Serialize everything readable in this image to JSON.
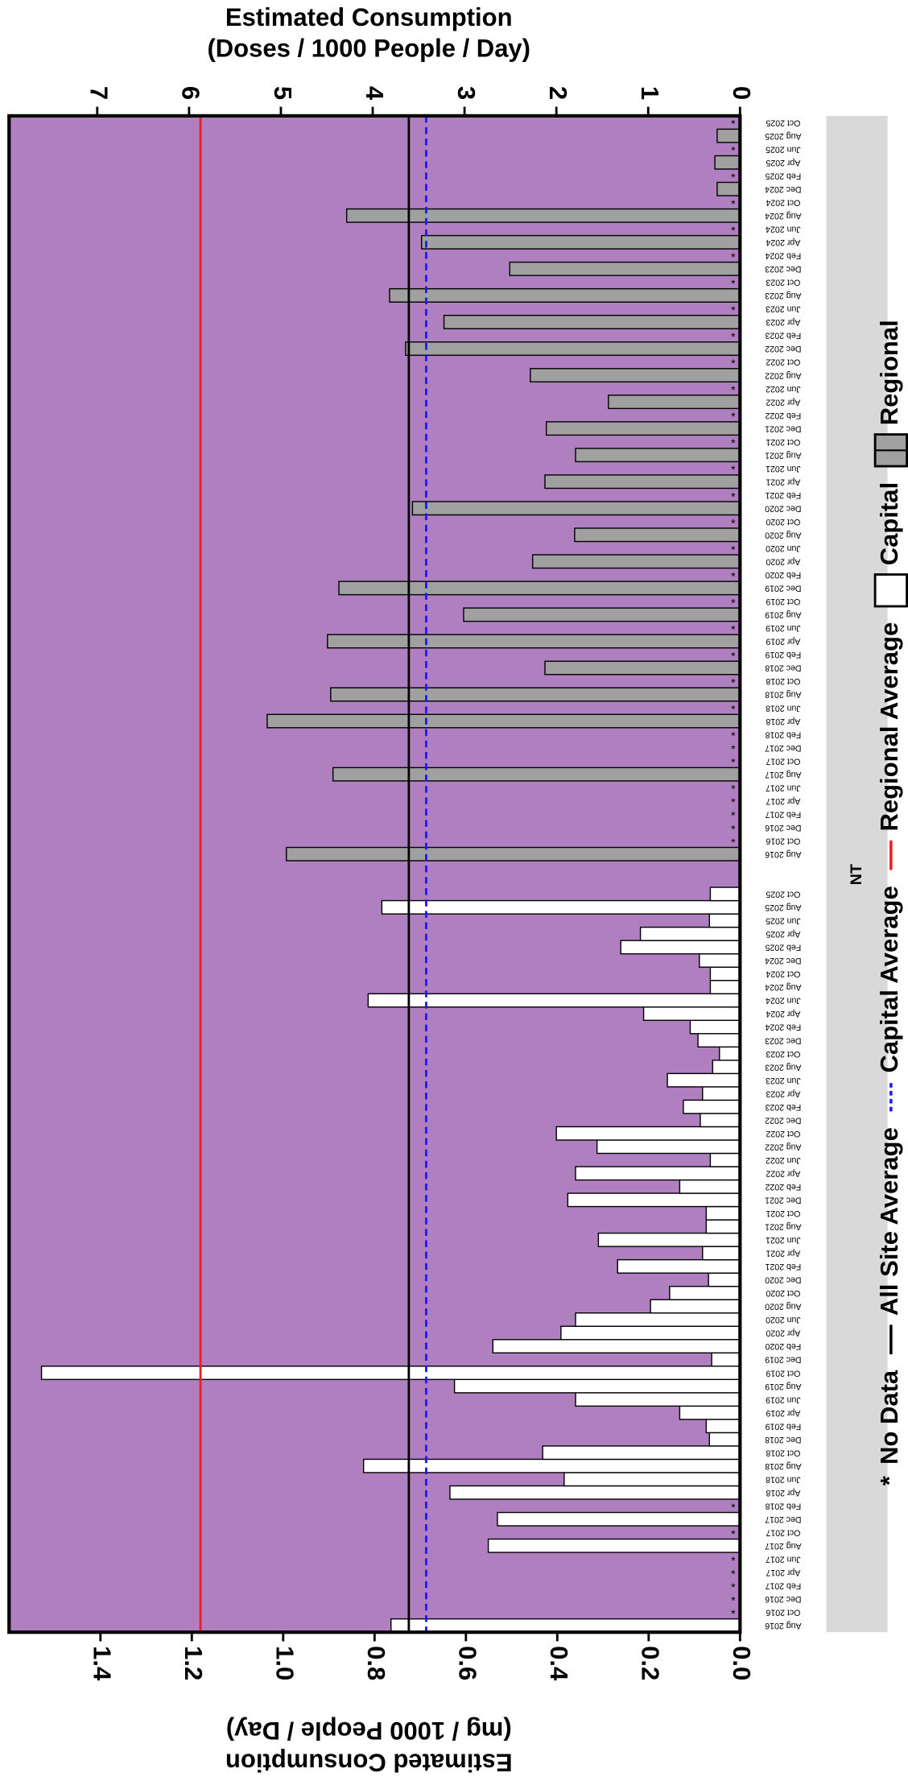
{
  "chart_data": {
    "type": "bar",
    "orientation": "horizontal",
    "facet_label": "NT",
    "ylabel": [
      "Estimated Consumption",
      "(mg / 1000 People / Day)"
    ],
    "y2label": [
      "Estimated Consumption",
      "(Doses / 1000 People / Day)"
    ],
    "ylim": [
      0,
      1.6
    ],
    "yticks": [
      {
        "value": 0,
        "label": "0.0"
      },
      0.2,
      0.4,
      0.6,
      0.8,
      {
        "value": 1,
        "label": "1.0"
      },
      1.2,
      1.4
    ],
    "y2lim": [
      0,
      7.96
    ],
    "y2ticks": [
      0,
      1,
      2,
      3,
      4,
      5,
      6,
      7
    ],
    "plot_background": "#b07fc0",
    "no_data_label": "*",
    "no_data_name": "No Data",
    "categories": [
      "Aug 2016",
      "Oct 2016",
      "Dec 2016",
      "Feb 2017",
      "Apr 2017",
      "Jun 2017",
      "Aug 2017",
      "Oct 2017",
      "Dec 2017",
      "Feb 2018",
      "Apr 2018",
      "Jun 2018",
      "Aug 2018",
      "Oct 2018",
      "Dec 2018",
      "Feb 2019",
      "Apr 2019",
      "Jun 2019",
      "Aug 2019",
      "Oct 2019",
      "Dec 2019",
      "Feb 2020",
      "Apr 2020",
      "Jun 2020",
      "Aug 2020",
      "Oct 2020",
      "Dec 2020",
      "Feb 2021",
      "Apr 2021",
      "Jun 2021",
      "Aug 2021",
      "Oct 2021",
      "Dec 2021",
      "Feb 2022",
      "Apr 2022",
      "Jun 2022",
      "Aug 2022",
      "Oct 2022",
      "Dec 2022",
      "Feb 2023",
      "Apr 2023",
      "Jun 2023",
      "Aug 2023",
      "Oct 2023",
      "Dec 2023",
      "Feb 2024",
      "Apr 2024",
      "Jun 2024",
      "Aug 2024",
      "Oct 2024",
      "Dec 2024",
      "Feb 2025",
      "Apr 2025",
      "Jun 2025",
      "Aug 2025",
      "Oct 2025"
    ],
    "series": [
      {
        "name": "Capital",
        "color": "#ffffff",
        "values": [
          0.764,
          null,
          null,
          null,
          null,
          null,
          0.551,
          null,
          0.531,
          null,
          0.635,
          0.385,
          0.824,
          0.432,
          0.067,
          0.074,
          0.132,
          0.36,
          0.625,
          1.529,
          0.062,
          0.541,
          0.392,
          0.36,
          0.196,
          0.154,
          0.069,
          0.268,
          0.082,
          0.31,
          0.074,
          0.074,
          0.377,
          0.132,
          0.36,
          0.065,
          0.313,
          0.402,
          0.087,
          0.124,
          0.082,
          0.159,
          0.06,
          0.045,
          0.092,
          0.109,
          0.211,
          0.814,
          0.065,
          0.065,
          0.089,
          0.261,
          0.218,
          0.067,
          0.784,
          0.065
        ]
      },
      {
        "name": "Regional",
        "color": "#a0a0a0",
        "values": [
          0.993,
          null,
          null,
          null,
          null,
          null,
          0.891,
          null,
          null,
          null,
          1.035,
          null,
          0.896,
          null,
          0.427,
          null,
          0.903,
          null,
          0.605,
          null,
          0.878,
          null,
          0.454,
          null,
          0.362,
          null,
          0.717,
          null,
          0.427,
          null,
          0.36,
          null,
          0.424,
          null,
          0.288,
          null,
          0.459,
          null,
          0.732,
          null,
          0.648,
          null,
          0.767,
          null,
          0.504,
          null,
          0.697,
          null,
          0.861,
          null,
          0.05,
          null,
          0.055,
          null,
          0.05,
          null
        ]
      }
    ],
    "reference_lines": [
      {
        "name": "All Site Average",
        "value": 0.725,
        "color": "#000000",
        "dashed": false
      },
      {
        "name": "Capital Average",
        "value": 0.687,
        "color": "#1a1aff",
        "dashed": true
      },
      {
        "name": "Regional Average",
        "value": 1.181,
        "color": "#ee1c25",
        "dashed": false
      }
    ]
  }
}
